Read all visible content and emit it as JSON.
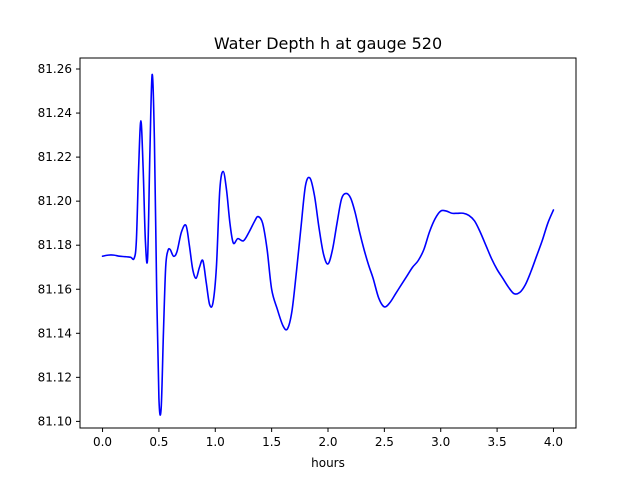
{
  "chart_data": {
    "type": "line",
    "title": "Water Depth h at gauge 520",
    "xlabel": "hours",
    "ylabel": "",
    "xlim": [
      -0.2,
      4.2
    ],
    "ylim": [
      81.097,
      81.265
    ],
    "xticks": [
      0.0,
      0.5,
      1.0,
      1.5,
      2.0,
      2.5,
      3.0,
      3.5,
      4.0
    ],
    "xtick_labels": [
      "0.0",
      "0.5",
      "1.0",
      "1.5",
      "2.0",
      "2.5",
      "3.0",
      "3.5",
      "4.0"
    ],
    "yticks": [
      81.1,
      81.12,
      81.14,
      81.16,
      81.18,
      81.2,
      81.22,
      81.24,
      81.26
    ],
    "ytick_labels": [
      "81.10",
      "81.12",
      "81.14",
      "81.16",
      "81.18",
      "81.20",
      "81.22",
      "81.24",
      "81.26"
    ],
    "grid": false,
    "series": [
      {
        "color": "#0000ff",
        "x": [
          0.0,
          0.05,
          0.1,
          0.15,
          0.2,
          0.25,
          0.28,
          0.3,
          0.32,
          0.34,
          0.36,
          0.38,
          0.4,
          0.42,
          0.44,
          0.46,
          0.48,
          0.5,
          0.52,
          0.54,
          0.56,
          0.58,
          0.6,
          0.63,
          0.66,
          0.7,
          0.74,
          0.77,
          0.8,
          0.83,
          0.86,
          0.89,
          0.92,
          0.95,
          0.98,
          1.01,
          1.04,
          1.07,
          1.1,
          1.13,
          1.16,
          1.2,
          1.25,
          1.3,
          1.35,
          1.38,
          1.42,
          1.46,
          1.5,
          1.55,
          1.6,
          1.64,
          1.68,
          1.72,
          1.76,
          1.8,
          1.84,
          1.88,
          1.92,
          1.96,
          2.0,
          2.04,
          2.08,
          2.12,
          2.16,
          2.2,
          2.24,
          2.28,
          2.32,
          2.36,
          2.4,
          2.45,
          2.5,
          2.55,
          2.6,
          2.65,
          2.7,
          2.75,
          2.8,
          2.85,
          2.9,
          2.95,
          3.0,
          3.05,
          3.1,
          3.15,
          3.2,
          3.25,
          3.3,
          3.35,
          3.4,
          3.45,
          3.5,
          3.55,
          3.6,
          3.65,
          3.7,
          3.75,
          3.8,
          3.85,
          3.9,
          3.95,
          4.0
        ],
        "y": [
          81.175,
          81.1755,
          81.1755,
          81.175,
          81.1748,
          81.1745,
          81.174,
          81.182,
          81.215,
          81.2365,
          81.215,
          81.182,
          81.1745,
          81.222,
          81.2575,
          81.228,
          81.16,
          81.1105,
          81.106,
          81.14,
          81.17,
          81.1775,
          81.178,
          81.175,
          81.177,
          81.186,
          81.189,
          81.18,
          81.169,
          81.165,
          81.17,
          81.173,
          81.163,
          81.153,
          81.154,
          81.17,
          81.205,
          81.2135,
          81.205,
          81.19,
          81.181,
          81.183,
          81.182,
          81.186,
          81.191,
          81.193,
          81.19,
          81.178,
          81.16,
          81.151,
          81.1435,
          81.142,
          81.15,
          81.168,
          81.188,
          81.207,
          81.2105,
          81.2025,
          81.188,
          81.176,
          81.1715,
          81.178,
          81.19,
          81.201,
          81.2035,
          81.2015,
          81.195,
          81.186,
          81.178,
          81.171,
          81.165,
          81.156,
          81.152,
          81.154,
          81.158,
          81.162,
          81.166,
          81.17,
          81.173,
          81.178,
          81.186,
          81.192,
          81.1955,
          81.1955,
          81.1945,
          81.1945,
          81.1945,
          81.1935,
          81.191,
          81.186,
          81.18,
          81.174,
          81.169,
          81.165,
          81.161,
          81.158,
          81.1585,
          81.162,
          81.168,
          81.175,
          81.182,
          81.19,
          81.196
        ]
      }
    ]
  }
}
